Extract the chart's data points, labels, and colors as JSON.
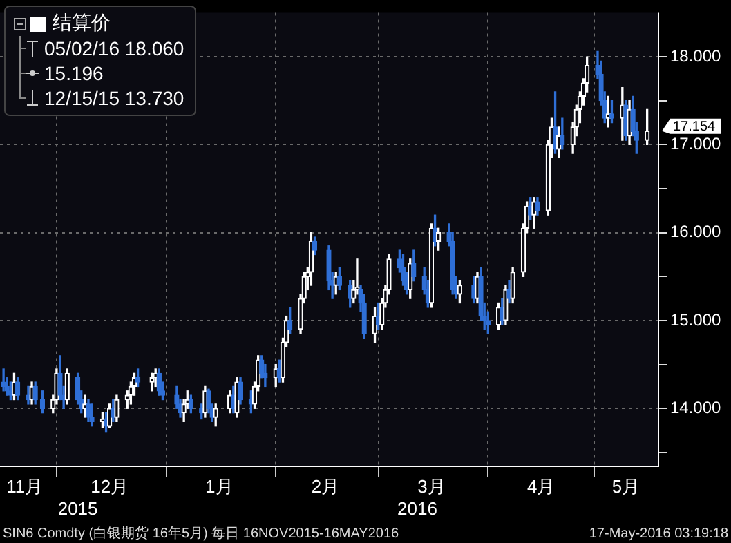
{
  "chart_data": {
    "type": "candlestick",
    "series": [
      {
        "name": "结算价",
        "color": "#ffffff",
        "x": [
          "2015-11-16",
          "2015-11-17",
          "2015-11-18",
          "2015-11-19",
          "2015-11-20",
          "2015-11-23",
          "2015-11-24",
          "2015-11-25",
          "2015-11-27",
          "2015-11-30",
          "2015-12-01",
          "2015-12-02",
          "2015-12-03",
          "2015-12-04",
          "2015-12-07",
          "2015-12-08",
          "2015-12-09",
          "2015-12-10",
          "2015-12-11",
          "2015-12-14",
          "2015-12-15",
          "2015-12-16",
          "2015-12-17",
          "2015-12-18",
          "2015-12-21",
          "2015-12-22",
          "2015-12-23",
          "2015-12-24",
          "2015-12-28",
          "2015-12-29",
          "2015-12-30",
          "2015-12-31",
          "2016-01-04",
          "2016-01-05",
          "2016-01-06",
          "2016-01-07",
          "2016-01-08",
          "2016-01-11",
          "2016-01-12",
          "2016-01-13",
          "2016-01-14",
          "2016-01-15",
          "2016-01-19",
          "2016-01-20",
          "2016-01-21",
          "2016-01-22",
          "2016-01-25",
          "2016-01-26",
          "2016-01-27",
          "2016-01-28",
          "2016-01-29",
          "2016-02-01",
          "2016-02-02",
          "2016-02-03",
          "2016-02-04",
          "2016-02-05",
          "2016-02-08",
          "2016-02-09",
          "2016-02-10",
          "2016-02-11",
          "2016-02-12",
          "2016-02-16",
          "2016-02-17",
          "2016-02-18",
          "2016-02-19",
          "2016-02-22",
          "2016-02-23",
          "2016-02-24",
          "2016-02-25",
          "2016-02-26",
          "2016-02-29",
          "2016-03-01",
          "2016-03-02",
          "2016-03-03",
          "2016-03-04",
          "2016-03-07",
          "2016-03-08",
          "2016-03-09",
          "2016-03-10",
          "2016-03-11",
          "2016-03-14",
          "2016-03-15",
          "2016-03-16",
          "2016-03-17",
          "2016-03-18",
          "2016-03-21",
          "2016-03-22",
          "2016-03-23",
          "2016-03-24",
          "2016-03-28",
          "2016-03-29",
          "2016-03-30",
          "2016-03-31",
          "2016-04-01",
          "2016-04-04",
          "2016-04-05",
          "2016-04-06",
          "2016-04-07",
          "2016-04-08",
          "2016-04-11",
          "2016-04-12",
          "2016-04-13",
          "2016-04-14",
          "2016-04-15",
          "2016-04-18",
          "2016-04-19",
          "2016-04-20",
          "2016-04-21",
          "2016-04-22",
          "2016-04-25",
          "2016-04-26",
          "2016-04-27",
          "2016-04-28",
          "2016-04-29",
          "2016-05-02",
          "2016-05-03",
          "2016-05-04",
          "2016-05-05",
          "2016-05-06",
          "2016-05-09",
          "2016-05-10",
          "2016-05-11",
          "2016-05-12",
          "2016-05-13",
          "2016-05-16"
        ],
        "ohlc": [
          [
            14.3,
            14.45,
            14.2,
            14.25
          ],
          [
            14.25,
            14.35,
            14.15,
            14.2
          ],
          [
            14.2,
            14.3,
            14.1,
            14.15
          ],
          [
            14.15,
            14.4,
            14.1,
            14.3
          ],
          [
            14.3,
            14.35,
            14.1,
            14.15
          ],
          [
            14.15,
            14.25,
            14.05,
            14.1
          ],
          [
            14.1,
            14.3,
            14.05,
            14.25
          ],
          [
            14.25,
            14.3,
            14.05,
            14.1
          ],
          [
            14.1,
            14.2,
            13.95,
            14.0
          ],
          [
            14.0,
            14.15,
            13.95,
            14.1
          ],
          [
            14.1,
            14.45,
            14.05,
            14.4
          ],
          [
            14.4,
            14.6,
            14.1,
            14.15
          ],
          [
            14.15,
            14.25,
            14.0,
            14.1
          ],
          [
            14.1,
            14.45,
            14.05,
            14.4
          ],
          [
            14.35,
            14.4,
            14.05,
            14.1
          ],
          [
            14.1,
            14.2,
            13.95,
            14.0
          ],
          [
            14.0,
            14.15,
            13.9,
            14.05
          ],
          [
            14.05,
            14.1,
            13.85,
            13.9
          ],
          [
            13.9,
            14.05,
            13.8,
            13.85
          ],
          [
            13.85,
            13.95,
            13.78,
            13.88
          ],
          [
            13.88,
            13.95,
            13.73,
            13.8
          ],
          [
            13.8,
            14.05,
            13.78,
            14.0
          ],
          [
            14.0,
            14.1,
            13.85,
            13.9
          ],
          [
            13.9,
            14.15,
            13.85,
            14.1
          ],
          [
            14.1,
            14.2,
            14.0,
            14.15
          ],
          [
            14.15,
            14.3,
            14.05,
            14.25
          ],
          [
            14.25,
            14.4,
            14.15,
            14.35
          ],
          [
            14.35,
            14.45,
            14.25,
            14.3
          ],
          [
            14.3,
            14.4,
            14.2,
            14.35
          ],
          [
            14.35,
            14.45,
            14.25,
            14.4
          ],
          [
            14.4,
            14.45,
            14.15,
            14.2
          ],
          [
            14.2,
            14.3,
            14.1,
            14.15
          ],
          [
            14.15,
            14.25,
            14.0,
            14.05
          ],
          [
            14.05,
            14.1,
            13.9,
            13.95
          ],
          [
            13.95,
            14.1,
            13.85,
            14.05
          ],
          [
            14.05,
            14.2,
            14.0,
            14.1
          ],
          [
            14.1,
            14.15,
            13.95,
            14.0
          ],
          [
            14.0,
            14.05,
            13.88,
            13.95
          ],
          [
            13.95,
            14.25,
            13.9,
            14.2
          ],
          [
            14.2,
            14.22,
            13.95,
            14.0
          ],
          [
            14.0,
            14.05,
            13.85,
            13.9
          ],
          [
            13.9,
            14.05,
            13.8,
            14.0
          ],
          [
            14.0,
            14.2,
            13.95,
            14.15
          ],
          [
            14.15,
            14.25,
            13.95,
            14.0
          ],
          [
            13.95,
            14.35,
            13.9,
            14.3
          ],
          [
            14.3,
            14.35,
            14.05,
            14.1
          ],
          [
            14.1,
            14.2,
            13.95,
            14.05
          ],
          [
            14.05,
            14.3,
            14.0,
            14.25
          ],
          [
            14.25,
            14.6,
            14.2,
            14.55
          ],
          [
            14.55,
            14.6,
            14.35,
            14.4
          ],
          [
            14.4,
            14.5,
            14.25,
            14.35
          ],
          [
            14.35,
            14.5,
            14.25,
            14.45
          ],
          [
            14.45,
            14.55,
            14.3,
            14.35
          ],
          [
            14.35,
            14.8,
            14.3,
            14.75
          ],
          [
            14.75,
            15.05,
            14.7,
            15.0
          ],
          [
            15.0,
            15.15,
            14.85,
            14.9
          ],
          [
            14.9,
            15.3,
            14.85,
            15.25
          ],
          [
            15.25,
            15.55,
            15.2,
            15.5
          ],
          [
            15.5,
            15.6,
            15.35,
            15.55
          ],
          [
            15.55,
            16.0,
            15.4,
            15.9
          ],
          [
            15.9,
            15.95,
            15.75,
            15.8
          ],
          [
            15.8,
            15.85,
            15.35,
            15.45
          ],
          [
            15.45,
            15.55,
            15.25,
            15.4
          ],
          [
            15.4,
            15.55,
            15.3,
            15.5
          ],
          [
            15.5,
            15.6,
            15.35,
            15.4
          ],
          [
            15.4,
            15.45,
            15.15,
            15.25
          ],
          [
            15.25,
            15.45,
            15.2,
            15.35
          ],
          [
            15.35,
            15.7,
            15.3,
            15.38
          ],
          [
            15.35,
            15.4,
            15.1,
            15.2
          ],
          [
            15.2,
            15.3,
            14.8,
            14.85
          ],
          [
            14.85,
            15.15,
            14.75,
            15.05
          ],
          [
            15.05,
            15.2,
            14.9,
            14.95
          ],
          [
            14.95,
            15.25,
            14.9,
            15.2
          ],
          [
            15.2,
            15.4,
            15.15,
            15.35
          ],
          [
            15.35,
            15.75,
            15.3,
            15.7
          ],
          [
            15.7,
            15.8,
            15.55,
            15.6
          ],
          [
            15.6,
            15.75,
            15.4,
            15.45
          ],
          [
            15.45,
            15.55,
            15.3,
            15.35
          ],
          [
            15.35,
            15.7,
            15.25,
            15.65
          ],
          [
            15.65,
            15.8,
            15.45,
            15.5
          ],
          [
            15.5,
            15.6,
            15.3,
            15.35
          ],
          [
            15.35,
            15.45,
            15.15,
            15.2
          ],
          [
            15.2,
            16.1,
            15.15,
            16.05
          ],
          [
            16.05,
            16.2,
            15.85,
            15.9
          ],
          [
            15.9,
            16.05,
            15.8,
            16.0
          ],
          [
            16.0,
            16.1,
            15.85,
            15.9
          ],
          [
            15.9,
            16.0,
            15.3,
            15.35
          ],
          [
            15.35,
            15.5,
            15.25,
            15.3
          ],
          [
            15.3,
            15.45,
            15.2,
            15.4
          ],
          [
            15.4,
            15.5,
            15.2,
            15.25
          ],
          [
            15.25,
            15.55,
            15.2,
            15.5
          ],
          [
            15.5,
            15.6,
            15.0,
            15.05
          ],
          [
            15.05,
            15.2,
            14.9,
            15.0
          ],
          [
            15.0,
            15.1,
            14.85,
            14.95
          ],
          [
            14.95,
            15.2,
            14.9,
            15.15
          ],
          [
            15.15,
            15.25,
            14.95,
            15.0
          ],
          [
            15.0,
            15.4,
            14.95,
            15.35
          ],
          [
            15.35,
            15.45,
            15.2,
            15.25
          ],
          [
            15.25,
            15.6,
            15.2,
            15.55
          ],
          [
            15.55,
            16.1,
            15.5,
            16.05
          ],
          [
            16.05,
            16.35,
            16.0,
            16.3
          ],
          [
            16.3,
            16.4,
            16.15,
            16.2
          ],
          [
            16.2,
            16.4,
            16.05,
            16.35
          ],
          [
            16.35,
            16.4,
            16.2,
            16.25
          ],
          [
            16.25,
            17.05,
            16.2,
            17.0
          ],
          [
            17.0,
            17.3,
            16.85,
            17.2
          ],
          [
            17.2,
            17.6,
            16.9,
            16.95
          ],
          [
            16.95,
            17.2,
            16.85,
            17.1
          ],
          [
            17.1,
            17.3,
            16.95,
            17.0
          ],
          [
            17.0,
            17.25,
            16.9,
            17.2
          ],
          [
            17.2,
            17.45,
            17.1,
            17.4
          ],
          [
            17.4,
            17.6,
            17.25,
            17.55
          ],
          [
            17.55,
            17.75,
            17.45,
            17.7
          ],
          [
            17.7,
            18.0,
            17.6,
            17.9
          ],
          [
            17.9,
            18.06,
            17.75,
            17.8
          ],
          [
            17.8,
            17.95,
            17.45,
            17.5
          ],
          [
            17.5,
            17.6,
            17.25,
            17.3
          ],
          [
            17.3,
            17.55,
            17.2,
            17.35
          ],
          [
            17.35,
            17.5,
            17.25,
            17.3
          ],
          [
            17.3,
            17.65,
            17.05,
            17.45
          ],
          [
            17.45,
            17.5,
            17.05,
            17.1
          ],
          [
            17.1,
            17.5,
            17.0,
            17.4
          ],
          [
            17.4,
            17.55,
            17.1,
            17.15
          ],
          [
            17.15,
            17.25,
            16.9,
            17.05
          ],
          [
            17.05,
            17.4,
            17.0,
            17.154
          ]
        ],
        "colors": [
          "#2f6fd6",
          "#2f6fd6",
          "#2f6fd6",
          "#ffffff",
          "#2f6fd6",
          "#2f6fd6",
          "#ffffff",
          "#2f6fd6",
          "#2f6fd6",
          "#ffffff",
          "#ffffff",
          "#2f6fd6",
          "#2f6fd6",
          "#ffffff",
          "#2f6fd6",
          "#2f6fd6",
          "#ffffff",
          "#2f6fd6",
          "#2f6fd6",
          "#ffffff",
          "#2f6fd6",
          "#ffffff",
          "#2f6fd6",
          "#ffffff",
          "#ffffff",
          "#ffffff",
          "#ffffff",
          "#2f6fd6",
          "#ffffff",
          "#ffffff",
          "#2f6fd6",
          "#2f6fd6",
          "#2f6fd6",
          "#2f6fd6",
          "#ffffff",
          "#ffffff",
          "#2f6fd6",
          "#2f6fd6",
          "#ffffff",
          "#2f6fd6",
          "#2f6fd6",
          "#ffffff",
          "#ffffff",
          "#2f6fd6",
          "#ffffff",
          "#2f6fd6",
          "#2f6fd6",
          "#ffffff",
          "#ffffff",
          "#2f6fd6",
          "#2f6fd6",
          "#ffffff",
          "#2f6fd6",
          "#ffffff",
          "#ffffff",
          "#2f6fd6",
          "#ffffff",
          "#ffffff",
          "#ffffff",
          "#ffffff",
          "#2f6fd6",
          "#2f6fd6",
          "#2f6fd6",
          "#ffffff",
          "#2f6fd6",
          "#2f6fd6",
          "#ffffff",
          "#ffffff",
          "#2f6fd6",
          "#2f6fd6",
          "#ffffff",
          "#2f6fd6",
          "#ffffff",
          "#ffffff",
          "#ffffff",
          "#2f6fd6",
          "#2f6fd6",
          "#2f6fd6",
          "#ffffff",
          "#2f6fd6",
          "#2f6fd6",
          "#2f6fd6",
          "#ffffff",
          "#2f6fd6",
          "#ffffff",
          "#2f6fd6",
          "#2f6fd6",
          "#2f6fd6",
          "#ffffff",
          "#2f6fd6",
          "#ffffff",
          "#2f6fd6",
          "#2f6fd6",
          "#2f6fd6",
          "#ffffff",
          "#2f6fd6",
          "#ffffff",
          "#2f6fd6",
          "#ffffff",
          "#ffffff",
          "#ffffff",
          "#2f6fd6",
          "#ffffff",
          "#2f6fd6",
          "#ffffff",
          "#ffffff",
          "#2f6fd6",
          "#ffffff",
          "#2f6fd6",
          "#ffffff",
          "#ffffff",
          "#ffffff",
          "#ffffff",
          "#ffffff",
          "#2f6fd6",
          "#2f6fd6",
          "#2f6fd6",
          "#ffffff",
          "#2f6fd6",
          "#ffffff",
          "#2f6fd6",
          "#ffffff",
          "#2f6fd6",
          "#2f6fd6",
          "#ffffff"
        ]
      }
    ],
    "xlim": [
      "2015-11-15",
      "2016-05-19"
    ],
    "xticks": [
      {
        "value": "2015-11-22",
        "label": "11月"
      },
      {
        "value": "2015-12-01",
        "label": null
      },
      {
        "value": "2015-12-16",
        "label": "12月"
      },
      {
        "value": "2016-01-01",
        "label": null
      },
      {
        "value": "2016-01-16",
        "label": "1月"
      },
      {
        "value": "2016-02-01",
        "label": null
      },
      {
        "value": "2016-02-15",
        "label": "2月"
      },
      {
        "value": "2016-03-01",
        "label": null
      },
      {
        "value": "2016-03-16",
        "label": "3月"
      },
      {
        "value": "2016-04-01",
        "label": null
      },
      {
        "value": "2016-04-16",
        "label": "4月"
      },
      {
        "value": "2016-05-01",
        "label": null
      },
      {
        "value": "2016-05-10",
        "label": "5月"
      }
    ],
    "ylim": [
      13.35,
      18.5
    ],
    "yticks": [
      {
        "value": 13.5,
        "label": null
      },
      {
        "value": 14,
        "label": "14.000"
      },
      {
        "value": 14.5,
        "label": null
      },
      {
        "value": 15,
        "label": "15.000"
      },
      {
        "value": 15.5,
        "label": null
      },
      {
        "value": 16,
        "label": "16.000"
      },
      {
        "value": 16.5,
        "label": null
      },
      {
        "value": 17,
        "label": "17.000"
      },
      {
        "value": 17.5,
        "label": null
      },
      {
        "value": 18,
        "label": "18.000"
      }
    ],
    "x2lim": [
      "2015-11-15",
      "2016-05-19"
    ],
    "x2ticks": [
      {
        "value": "2015-12-07",
        "label": "2015"
      },
      {
        "value": "2016-03-12",
        "label": "2016"
      }
    ],
    "grid": true,
    "legend": "top left",
    "annotations": [
      "05/02/16 18.060",
      "15.196",
      "12/15/15 13.730",
      "17.154",
      "SIN6 Comdty (白银期货 16年5月)  每日 16NOV2015-16MAY2016",
      "17-May-2016 03:19:18"
    ]
  }
}
